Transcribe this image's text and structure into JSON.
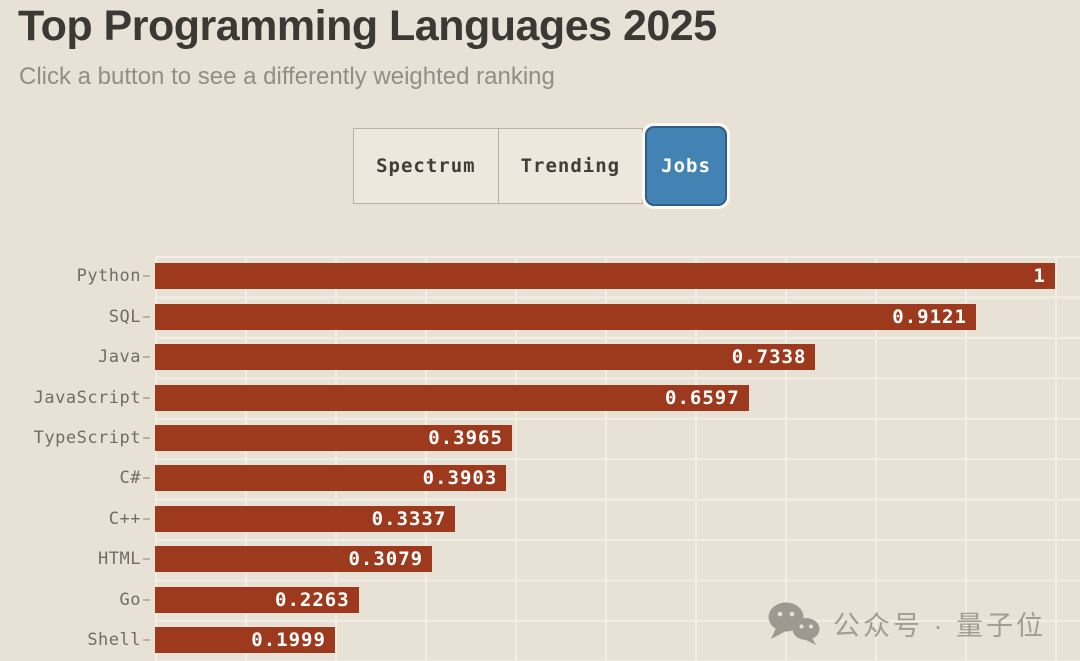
{
  "page": {
    "title": "Top Programming Languages 2025",
    "subtitle": "Click a button to see a differently weighted ranking"
  },
  "buttons": [
    {
      "label": "Spectrum",
      "active": false
    },
    {
      "label": "Trending",
      "active": false
    },
    {
      "label": "Jobs",
      "active": true
    }
  ],
  "chart_data": {
    "type": "bar",
    "orientation": "horizontal",
    "title": "Top Programming Languages 2025",
    "ranking_mode": "Jobs",
    "categories": [
      "Python",
      "SQL",
      "Java",
      "JavaScript",
      "TypeScript",
      "C#",
      "C++",
      "HTML",
      "Go",
      "Shell"
    ],
    "values": [
      1,
      0.9121,
      0.7338,
      0.6597,
      0.3965,
      0.3903,
      0.3337,
      0.3079,
      0.2263,
      0.1999
    ],
    "value_labels": [
      "1",
      "0.9121",
      "0.7338",
      "0.6597",
      "0.3965",
      "0.3903",
      "0.3337",
      "0.3079",
      "0.2263",
      "0.1999"
    ],
    "xlim": [
      0,
      1
    ],
    "grid": true,
    "legend": false,
    "bar_color": "#9d3a1d",
    "value_label_color": "#ffffff"
  },
  "watermark": {
    "text": "公众号 · 量子位",
    "icon": "wechat-icon"
  },
  "colors": {
    "background": "#e8e2d6",
    "bar": "#9d3a1d",
    "active_button": "#4383b3",
    "active_button_border": "#2d5d88",
    "gridline": "#f3eee3",
    "title_text": "#3a3935",
    "subtitle_text": "#908e86",
    "label_text": "#6e6d66"
  }
}
